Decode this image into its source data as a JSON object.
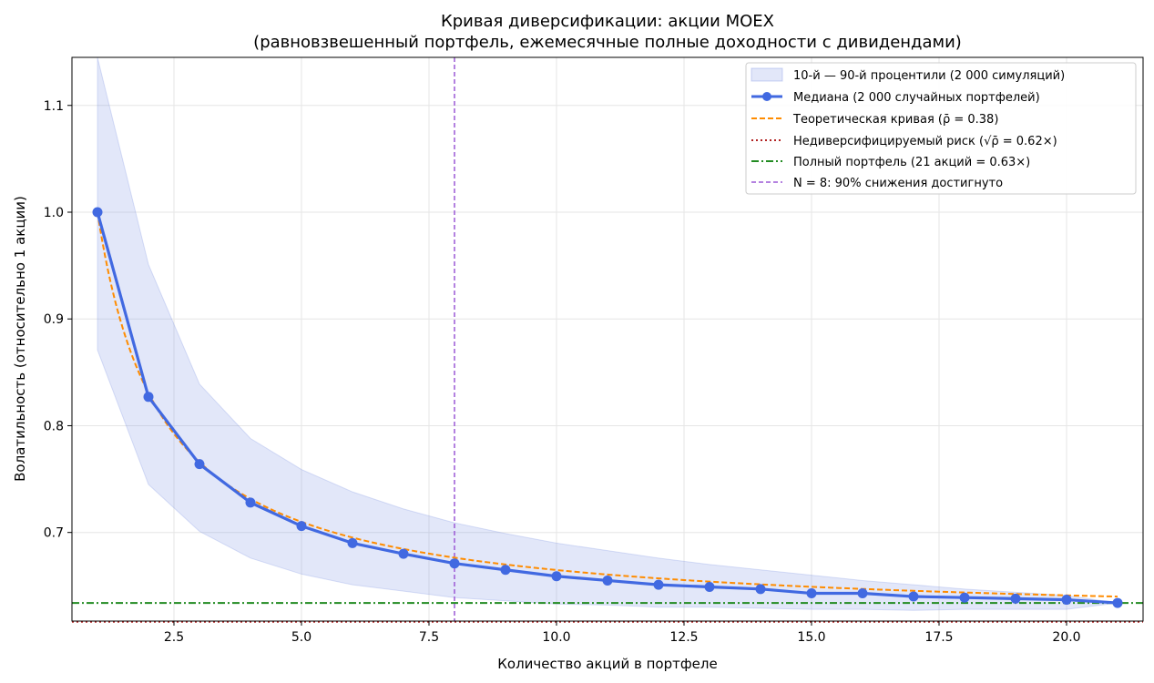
{
  "chart_data": {
    "type": "line",
    "title": "Кривая диверсификации: акции MOEX",
    "subtitle": "(равновзвешенный портфель, ежемесячные полные доходности с дивидендами)",
    "xlabel": "Количество акций в портфеле",
    "ylabel": "Волатильность (относительно 1 акции)",
    "xlim": [
      0.5,
      21.5
    ],
    "ylim": [
      0.617,
      1.145
    ],
    "x_ticks": [
      2.5,
      5.0,
      7.5,
      10.0,
      12.5,
      15.0,
      17.5,
      20.0
    ],
    "x_tick_labels": [
      "2.5",
      "5.0",
      "7.5",
      "10.0",
      "12.5",
      "15.0",
      "17.5",
      "20.0"
    ],
    "y_ticks": [
      0.7,
      0.8,
      0.9,
      1.0,
      1.1
    ],
    "y_tick_labels": [
      "0.7",
      "0.8",
      "0.9",
      "1.0",
      "1.1"
    ],
    "grid": true,
    "legend_position": "top-right",
    "x": [
      1,
      2,
      3,
      4,
      5,
      6,
      7,
      8,
      9,
      10,
      11,
      12,
      13,
      14,
      15,
      16,
      17,
      18,
      19,
      20,
      21
    ],
    "band": {
      "name": "10-й — 90-й процентили (2 000 симуляций)",
      "color": "#6f86e0",
      "lower": [
        0.871,
        0.745,
        0.701,
        0.676,
        0.661,
        0.651,
        0.645,
        0.639,
        0.636,
        0.633,
        0.632,
        0.63,
        0.63,
        0.629,
        0.628,
        0.628,
        0.627,
        0.628,
        0.628,
        0.628,
        0.634
      ],
      "upper": [
        1.145,
        0.951,
        0.839,
        0.788,
        0.759,
        0.738,
        0.722,
        0.709,
        0.699,
        0.69,
        0.683,
        0.676,
        0.67,
        0.665,
        0.66,
        0.655,
        0.651,
        0.647,
        0.644,
        0.641,
        0.634
      ]
    },
    "series": [
      {
        "name": "Медиана (2 000 случайных портфелей)",
        "color": "#4169e1",
        "values": [
          1.0,
          0.827,
          0.764,
          0.728,
          0.706,
          0.69,
          0.68,
          0.671,
          0.665,
          0.659,
          0.655,
          0.651,
          0.649,
          0.647,
          0.643,
          0.643,
          0.64,
          0.639,
          0.638,
          0.637,
          0.634
        ]
      },
      {
        "name": "Теоретическая кривая (ρ̄ = 0.38)",
        "color": "#ff8c00",
        "rho": 0.38
      }
    ],
    "hlines": [
      {
        "name": "Недиверсифицируемый риск (√ρ̄ = 0.62×)",
        "value": 0.6164,
        "color": "#b22222"
      },
      {
        "name": "Полный портфель (21 акций = 0.63×)",
        "value": 0.634,
        "color": "#228b22"
      }
    ],
    "vline": {
      "name": "N = 8: 90% снижения достигнуто",
      "value": 8,
      "color": "#9b59d6"
    }
  }
}
